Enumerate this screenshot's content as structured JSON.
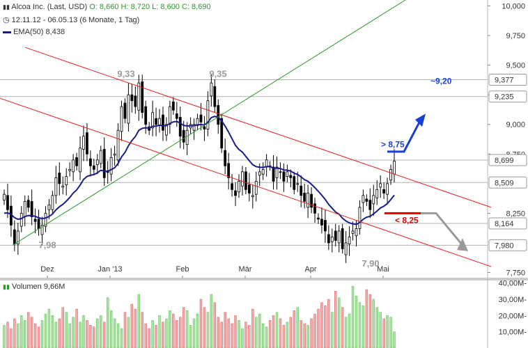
{
  "header": {
    "title": "Alcoa Inc. (Last, USD)",
    "ohlc": {
      "open": "O: 8,660",
      "high": "H: 8,720",
      "low": "L: 8,600",
      "close": "C: 8,690"
    },
    "period": "12.11.12 - 06.05.13 (6 Monate, 1 Tag)",
    "ema_label": "EMA(50)",
    "ema_value": "8,438",
    "volume_label": "Volumen",
    "volume_value": "9,66M"
  },
  "colors": {
    "candle": "#000000",
    "ema": "#1a1a8c",
    "channel": "#e52222",
    "trend_up": "#2a9a2a",
    "target_up": "#1a3fd8",
    "target_down": "#e00000",
    "arrow_down": "#9a9a9a",
    "vol_up": "#a8e2a0",
    "vol_down": "#f2a8a8"
  },
  "chart_data": [
    {
      "type": "candlestick",
      "title": "Alcoa Inc. (Last, USD)",
      "ylim": [
        7.7,
        10.05
      ],
      "y_ticks": [
        "10,000",
        "9,750",
        "9,500",
        "9,250",
        "9,000",
        "8,750",
        "8,250",
        "7,750"
      ],
      "x_ticks": [
        "Dez",
        "Jan '13",
        "Feb",
        "Mär",
        "Apr",
        "Mai"
      ],
      "tagged_levels": [
        {
          "value": 9.377,
          "label": "9,377"
        },
        {
          "value": 9.235,
          "label": "9,235"
        },
        {
          "value": 8.699,
          "label": "8,699"
        },
        {
          "value": 8.509,
          "label": "8,509"
        },
        {
          "value": 8.164,
          "label": "8,164"
        },
        {
          "value": 7.98,
          "label": "7,980"
        }
      ],
      "annotations": [
        {
          "text": "9,33",
          "value": 9.33
        },
        {
          "text": "9,35",
          "value": 9.35
        },
        {
          "text": "7,98",
          "value": 7.98
        },
        {
          "text": "7,90",
          "value": 7.9
        },
        {
          "text": "> 8,75",
          "value": 8.75
        },
        {
          "text": "~9,20",
          "value": 9.2
        },
        {
          "text": "< 8,25",
          "value": 8.25
        }
      ],
      "series": [
        {
          "name": "EMA(50)",
          "last": 8.438
        }
      ],
      "last": {
        "open": 8.66,
        "high": 8.72,
        "low": 8.6,
        "close": 8.69
      },
      "closes": [
        8.41,
        8.28,
        8.15,
        7.99,
        8.1,
        8.25,
        8.35,
        8.3,
        8.22,
        8.18,
        8.12,
        8.15,
        8.25,
        8.32,
        8.4,
        8.55,
        8.5,
        8.48,
        8.56,
        8.62,
        8.7,
        8.65,
        8.8,
        8.9,
        8.75,
        8.65,
        8.62,
        8.7,
        8.78,
        8.55,
        8.6,
        8.72,
        8.75,
        8.95,
        9.15,
        9.05,
        9.25,
        9.2,
        9.15,
        9.35,
        9.1,
        9.0,
        8.95,
        9.1,
        9.0,
        9.05,
        8.95,
        9.0,
        9.15,
        9.12,
        9.05,
        8.9,
        8.85,
        8.95,
        9.0,
        9.0,
        9.05,
        9.02,
        8.96,
        9.2,
        9.35,
        9.15,
        9.0,
        8.8,
        8.65,
        8.55,
        8.45,
        8.4,
        8.52,
        8.6,
        8.45,
        8.42,
        8.4,
        8.52,
        8.6,
        8.62,
        8.7,
        8.65,
        8.52,
        8.64,
        8.6,
        8.52,
        8.6,
        8.55,
        8.45,
        8.5,
        8.4,
        8.35,
        8.42,
        8.3,
        8.25,
        8.2,
        8.15,
        8.1,
        8.0,
        8.05,
        8.02,
        8.1,
        7.95,
        8.0,
        8.05,
        8.1,
        8.12,
        8.3,
        8.4,
        8.35,
        8.28,
        8.4,
        8.45,
        8.5,
        8.42,
        8.5,
        8.62,
        8.69
      ],
      "y_unit": "USD"
    },
    {
      "type": "bar",
      "title": "Volumen",
      "ylim": [
        0,
        42
      ],
      "y_ticks": [
        "40,00M-",
        "30,00M-",
        "20,00M-",
        "10,00M-"
      ],
      "y_unit": "M",
      "volumes": [
        14,
        16,
        12,
        18,
        15,
        20,
        17,
        22,
        19,
        15,
        13,
        17,
        21,
        24,
        20,
        16,
        18,
        25,
        22,
        15,
        19,
        24,
        16,
        20,
        17,
        14,
        13,
        18,
        20,
        16,
        31,
        23,
        18,
        15,
        12,
        22,
        19,
        27,
        24,
        33,
        22,
        15,
        12,
        17,
        14,
        20,
        16,
        18,
        23,
        21,
        17,
        19,
        25,
        23,
        14,
        18,
        21,
        30,
        25,
        22,
        33,
        28,
        19,
        16,
        22,
        18,
        15,
        20,
        17,
        12,
        16,
        14,
        24,
        19,
        21,
        15,
        13,
        17,
        20,
        22,
        18,
        14,
        16,
        19,
        23,
        25,
        17,
        15,
        14,
        18,
        21,
        24,
        28,
        26,
        30,
        22,
        35,
        31,
        25,
        19,
        21,
        38,
        32,
        28,
        26,
        36,
        33,
        30,
        25,
        22,
        18,
        20,
        19,
        10
      ]
    }
  ]
}
